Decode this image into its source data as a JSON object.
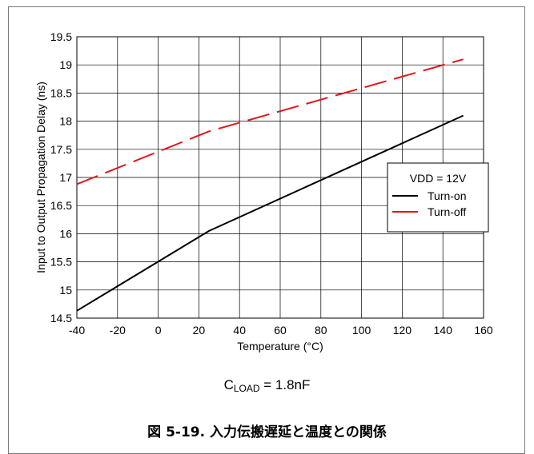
{
  "chart_data": {
    "type": "line",
    "title": "",
    "xlabel": "Temperature (°C)",
    "ylabel": "Input to Output Propagation Delay (ns)",
    "xlim": [
      -40,
      160
    ],
    "ylim": [
      14.5,
      19.5
    ],
    "xticks": [
      -40,
      -20,
      0,
      20,
      40,
      60,
      80,
      100,
      120,
      140,
      160
    ],
    "yticks": [
      14.5,
      15,
      15.5,
      16,
      16.5,
      17,
      17.5,
      18,
      18.5,
      19,
      19.5
    ],
    "grid": true,
    "legend": {
      "title": "VDD = 12V",
      "placement": "right"
    },
    "series": [
      {
        "name": "Turn-on",
        "color": "#000000",
        "style": "solid",
        "x": [
          -40,
          25,
          150
        ],
        "y": [
          14.63,
          16.05,
          18.1
        ]
      },
      {
        "name": "Turn-off",
        "color": "#e3161b",
        "style": "dashed",
        "x": [
          -40,
          25,
          150
        ],
        "y": [
          16.88,
          17.82,
          19.1
        ]
      }
    ]
  },
  "condition": {
    "prefix": "C",
    "subscript": "LOAD",
    "suffix": " = 1.8nF"
  },
  "caption": "図 5-19. 入力伝搬遅延と温度との関係"
}
